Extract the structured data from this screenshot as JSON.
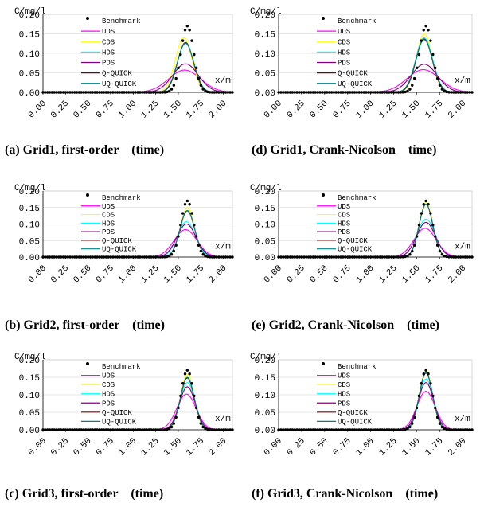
{
  "figure": {
    "benchmark_color": "#000000",
    "series_colors": {
      "UDS": "#FF00FF",
      "CDS": "#FFFF00",
      "HDS": "#00FFFF",
      "PDS": "#800080",
      "Q-QUICK": "#800000",
      "UQ-QUICK": "#008080"
    }
  },
  "chart_data": [
    {
      "type": "line",
      "panel": "a",
      "caption": "(a) Grid1, first-order    (time)",
      "ylabel": "C/mg/l",
      "xlabel": "x/m",
      "ylim": [
        0,
        0.2
      ],
      "xlim": [
        0,
        2.1
      ],
      "yticks": [
        "0.00",
        "0.05",
        "0.10",
        "0.15",
        "0.20"
      ],
      "xticks": [
        "0.00",
        "0.25",
        "0.50",
        "0.75",
        "1.00",
        "1.25",
        "1.50",
        "1.75",
        "2.00"
      ],
      "grid": "horizontal",
      "legend": "upper-left",
      "series": [
        {
          "name": "Benchmark",
          "style": "points",
          "peak": 0.17,
          "center": 1.6,
          "width": 0.1
        },
        {
          "name": "UDS",
          "peak": 0.057,
          "center": 1.57,
          "width": 0.25
        },
        {
          "name": "CDS",
          "peak": 0.14,
          "center": 1.56,
          "width": 0.13
        },
        {
          "name": "HDS",
          "peak": 0.125,
          "center": 1.58,
          "width": 0.13
        },
        {
          "name": "PDS",
          "peak": 0.073,
          "center": 1.58,
          "width": 0.2
        },
        {
          "name": "Q-QUICK",
          "peak": 0.128,
          "center": 1.58,
          "width": 0.125
        },
        {
          "name": "UQ-QUICK",
          "peak": 0.126,
          "center": 1.58,
          "width": 0.13
        }
      ]
    },
    {
      "type": "line",
      "panel": "d",
      "caption": "(d) Grid1, Crank-Nicolson    time)",
      "ylabel": "C/mg/l",
      "xlabel": "x/m",
      "ylim": [
        0,
        0.2
      ],
      "xlim": [
        0,
        2.1
      ],
      "yticks": [
        "0.00",
        "0.05",
        "0.10",
        "0.15",
        "0.20"
      ],
      "xticks": [
        "0.00",
        "0.25",
        "0.50",
        "0.75",
        "1.00",
        "1.25",
        "1.50",
        "1.75",
        "2.00"
      ],
      "grid": "horizontal",
      "legend": "upper-left",
      "series": [
        {
          "name": "Benchmark",
          "style": "points",
          "peak": 0.17,
          "center": 1.6,
          "width": 0.1
        },
        {
          "name": "UDS",
          "peak": 0.058,
          "center": 1.57,
          "width": 0.25
        },
        {
          "name": "CDS",
          "peak": 0.15,
          "center": 1.58,
          "width": 0.12
        },
        {
          "name": "HDS",
          "peak": 0.14,
          "center": 1.58,
          "width": 0.13
        },
        {
          "name": "PDS",
          "peak": 0.072,
          "center": 1.58,
          "width": 0.2
        },
        {
          "name": "Q-QUICK",
          "peak": 0.137,
          "center": 1.58,
          "width": 0.125
        },
        {
          "name": "UQ-QUICK",
          "peak": 0.135,
          "center": 1.58,
          "width": 0.13
        }
      ]
    },
    {
      "type": "line",
      "panel": "b",
      "caption": "(b) Grid2, first-order    (time)",
      "ylabel": "C/mg/l",
      "xlabel": "x/m",
      "ylim": [
        0,
        0.2
      ],
      "xlim": [
        0,
        2.1
      ],
      "yticks": [
        "0.00",
        "0.05",
        "0.10",
        "0.15",
        "0.20"
      ],
      "xticks": [
        "0.00",
        "0.25",
        "0.50",
        "0.75",
        "1.00",
        "1.25",
        "1.50",
        "1.75",
        "2.00"
      ],
      "grid": "horizontal",
      "legend": "upper-left",
      "series": [
        {
          "name": "Benchmark",
          "style": "points",
          "peak": 0.17,
          "center": 1.6,
          "width": 0.1
        },
        {
          "name": "UDS",
          "peak": 0.083,
          "center": 1.58,
          "width": 0.18
        },
        {
          "name": "CDS",
          "peak": 0.15,
          "center": 1.6,
          "width": 0.11
        },
        {
          "name": "HDS",
          "peak": 0.107,
          "center": 1.59,
          "width": 0.14
        },
        {
          "name": "PDS",
          "peak": 0.1,
          "center": 1.59,
          "width": 0.15
        },
        {
          "name": "Q-QUICK",
          "peak": 0.14,
          "center": 1.6,
          "width": 0.115
        },
        {
          "name": "UQ-QUICK",
          "peak": 0.141,
          "center": 1.6,
          "width": 0.115
        }
      ]
    },
    {
      "type": "line",
      "panel": "e",
      "caption": "(e) Grid2, Crank-Nicolson    (time)",
      "ylabel": "C/mg/l",
      "xlabel": "x/m",
      "ylim": [
        0,
        0.2
      ],
      "xlim": [
        0,
        2.1
      ],
      "yticks": [
        "0.00",
        "0.05",
        "0.10",
        "0.15",
        "0.20"
      ],
      "xticks": [
        "0.00",
        "0.25",
        "0.50",
        "0.75",
        "1.00",
        "1.25",
        "1.50",
        "1.75",
        "2.00"
      ],
      "grid": "horizontal",
      "legend": "upper-left",
      "series": [
        {
          "name": "Benchmark",
          "style": "points",
          "peak": 0.17,
          "center": 1.6,
          "width": 0.1
        },
        {
          "name": "UDS",
          "peak": 0.087,
          "center": 1.59,
          "width": 0.17
        },
        {
          "name": "CDS",
          "peak": 0.165,
          "center": 1.6,
          "width": 0.105
        },
        {
          "name": "HDS",
          "peak": 0.115,
          "center": 1.6,
          "width": 0.14
        },
        {
          "name": "PDS",
          "peak": 0.105,
          "center": 1.6,
          "width": 0.145
        },
        {
          "name": "Q-QUICK",
          "peak": 0.16,
          "center": 1.6,
          "width": 0.105
        },
        {
          "name": "UQ-QUICK",
          "peak": 0.16,
          "center": 1.6,
          "width": 0.106
        }
      ]
    },
    {
      "type": "line",
      "panel": "c",
      "caption": "(c) Grid3, first-order    (time)",
      "ylabel": "C/mg/l",
      "xlabel": "x/m",
      "ylim": [
        0,
        0.2
      ],
      "xlim": [
        0,
        2.1
      ],
      "yticks": [
        "0.00",
        "0.05",
        "0.10",
        "0.15",
        "0.20"
      ],
      "xticks": [
        "0.00",
        "0.25",
        "0.50",
        "0.75",
        "1.00",
        "1.25",
        "1.50",
        "1.75",
        "2.00"
      ],
      "grid": "horizontal",
      "legend": "upper-left",
      "series": [
        {
          "name": "Benchmark",
          "style": "points",
          "peak": 0.17,
          "center": 1.6,
          "width": 0.1
        },
        {
          "name": "UDS",
          "peak": 0.102,
          "center": 1.59,
          "width": 0.15
        },
        {
          "name": "CDS",
          "peak": 0.16,
          "center": 1.6,
          "width": 0.105
        },
        {
          "name": "HDS",
          "peak": 0.135,
          "center": 1.6,
          "width": 0.12
        },
        {
          "name": "PDS",
          "peak": 0.123,
          "center": 1.6,
          "width": 0.125
        },
        {
          "name": "Q-QUICK",
          "peak": 0.148,
          "center": 1.6,
          "width": 0.11
        },
        {
          "name": "UQ-QUICK",
          "peak": 0.15,
          "center": 1.6,
          "width": 0.11
        }
      ]
    },
    {
      "type": "line",
      "panel": "f",
      "caption": "(f) Grid3, Crank-Nicolson    (time)",
      "ylabel": "C/mg/'",
      "xlabel": "x/m",
      "ylim": [
        0,
        0.2
      ],
      "xlim": [
        0,
        2.1
      ],
      "yticks": [
        "0.00",
        "0.05",
        "0.10",
        "0.15",
        "0.20"
      ],
      "xticks": [
        "0.00",
        "0.25",
        "0.50",
        "0.75",
        "1.00",
        "1.25",
        "1.50",
        "1.75",
        "2.00"
      ],
      "grid": "horizontal",
      "legend": "upper-left",
      "series": [
        {
          "name": "Benchmark",
          "style": "points",
          "peak": 0.17,
          "center": 1.6,
          "width": 0.1
        },
        {
          "name": "UDS",
          "peak": 0.11,
          "center": 1.6,
          "width": 0.14
        },
        {
          "name": "CDS",
          "peak": 0.168,
          "center": 1.6,
          "width": 0.102
        },
        {
          "name": "HDS",
          "peak": 0.145,
          "center": 1.6,
          "width": 0.115
        },
        {
          "name": "PDS",
          "peak": 0.135,
          "center": 1.6,
          "width": 0.12
        },
        {
          "name": "Q-QUICK",
          "peak": 0.162,
          "center": 1.6,
          "width": 0.104
        },
        {
          "name": "UQ-QUICK",
          "peak": 0.163,
          "center": 1.6,
          "width": 0.104
        }
      ]
    }
  ]
}
